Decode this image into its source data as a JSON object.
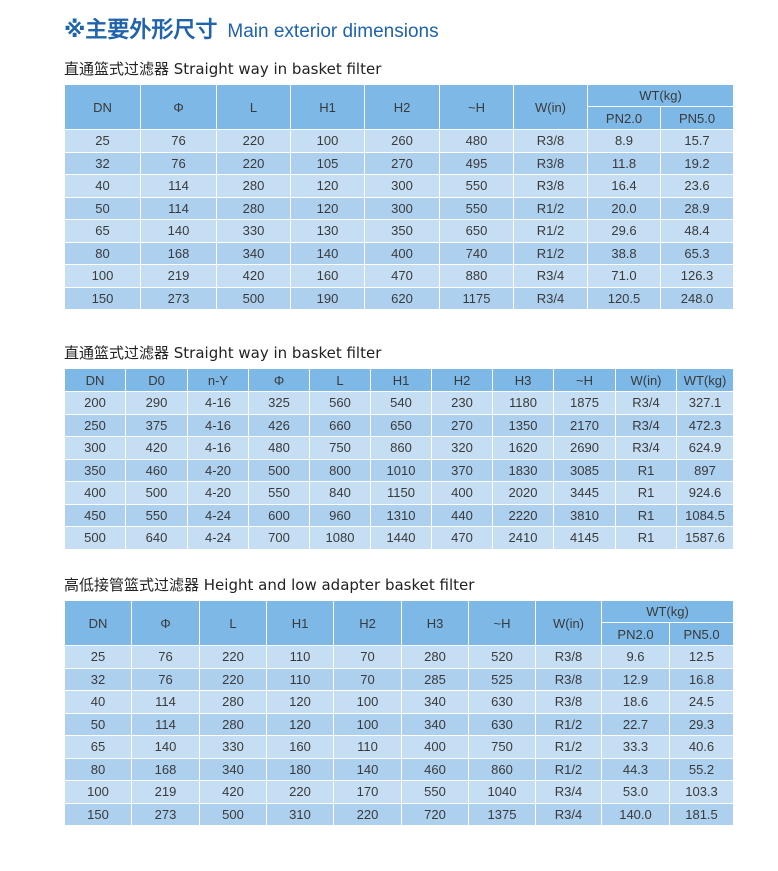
{
  "title": {
    "cn": "※主要外形尺寸",
    "en": "Main exterior dimensions"
  },
  "colors": {
    "header": "#7db8e6",
    "row_light": "#c6def3",
    "row_dark": "#aed0ef",
    "title": "#1f63ad"
  },
  "tables": [
    {
      "caption": "直通篮式过滤器 Straight way in basket filter",
      "headers": [
        "DN",
        "Φ",
        "L",
        "H1",
        "H2",
        "~H",
        "W(in)"
      ],
      "group_header": "WT(kg)",
      "sub_headers": [
        "PN2.0",
        "PN5.0"
      ],
      "rows": [
        [
          "25",
          "76",
          "220",
          "100",
          "260",
          "480",
          "R3/8",
          "8.9",
          "15.7"
        ],
        [
          "32",
          "76",
          "220",
          "105",
          "270",
          "495",
          "R3/8",
          "11.8",
          "19.2"
        ],
        [
          "40",
          "114",
          "280",
          "120",
          "300",
          "550",
          "R3/8",
          "16.4",
          "23.6"
        ],
        [
          "50",
          "114",
          "280",
          "120",
          "300",
          "550",
          "R1/2",
          "20.0",
          "28.9"
        ],
        [
          "65",
          "140",
          "330",
          "130",
          "350",
          "650",
          "R1/2",
          "29.6",
          "48.4"
        ],
        [
          "80",
          "168",
          "340",
          "140",
          "400",
          "740",
          "R1/2",
          "38.8",
          "65.3"
        ],
        [
          "100",
          "219",
          "420",
          "160",
          "470",
          "880",
          "R3/4",
          "71.0",
          "126.3"
        ],
        [
          "150",
          "273",
          "500",
          "190",
          "620",
          "1175",
          "R3/4",
          "120.5",
          "248.0"
        ]
      ]
    },
    {
      "caption": "直通篮式过滤器 Straight way in basket filter",
      "headers": [
        "DN",
        "D0",
        "n-Y",
        "Φ",
        "L",
        "H1",
        "H2",
        "H3",
        "~H",
        "W(in)",
        "WT(kg)"
      ],
      "rows": [
        [
          "200",
          "290",
          "4-16",
          "325",
          "560",
          "540",
          "230",
          "1180",
          "1875",
          "R3/4",
          "327.1"
        ],
        [
          "250",
          "375",
          "4-16",
          "426",
          "660",
          "650",
          "270",
          "1350",
          "2170",
          "R3/4",
          "472.3"
        ],
        [
          "300",
          "420",
          "4-16",
          "480",
          "750",
          "860",
          "320",
          "1620",
          "2690",
          "R3/4",
          "624.9"
        ],
        [
          "350",
          "460",
          "4-20",
          "500",
          "800",
          "1010",
          "370",
          "1830",
          "3085",
          "R1",
          "897"
        ],
        [
          "400",
          "500",
          "4-20",
          "550",
          "840",
          "1150",
          "400",
          "2020",
          "3445",
          "R1",
          "924.6"
        ],
        [
          "450",
          "550",
          "4-24",
          "600",
          "960",
          "1310",
          "440",
          "2220",
          "3810",
          "R1",
          "1084.5"
        ],
        [
          "500",
          "640",
          "4-24",
          "700",
          "1080",
          "1440",
          "470",
          "2410",
          "4145",
          "R1",
          "1587.6"
        ]
      ]
    },
    {
      "caption": "高低接管篮式过滤器 Height and low adapter basket filter",
      "headers": [
        "DN",
        "Φ",
        "L",
        "H1",
        "H2",
        "H3",
        "~H",
        "W(in)"
      ],
      "group_header": "WT(kg)",
      "sub_headers": [
        "PN2.0",
        "PN5.0"
      ],
      "rows": [
        [
          "25",
          "76",
          "220",
          "110",
          "70",
          "280",
          "520",
          "R3/8",
          "9.6",
          "12.5"
        ],
        [
          "32",
          "76",
          "220",
          "110",
          "70",
          "285",
          "525",
          "R3/8",
          "12.9",
          "16.8"
        ],
        [
          "40",
          "114",
          "280",
          "120",
          "100",
          "340",
          "630",
          "R3/8",
          "18.6",
          "24.5"
        ],
        [
          "50",
          "114",
          "280",
          "120",
          "100",
          "340",
          "630",
          "R1/2",
          "22.7",
          "29.3"
        ],
        [
          "65",
          "140",
          "330",
          "160",
          "110",
          "400",
          "750",
          "R1/2",
          "33.3",
          "40.6"
        ],
        [
          "80",
          "168",
          "340",
          "180",
          "140",
          "460",
          "860",
          "R1/2",
          "44.3",
          "55.2"
        ],
        [
          "100",
          "219",
          "420",
          "220",
          "170",
          "550",
          "1040",
          "R3/4",
          "53.0",
          "103.3"
        ],
        [
          "150",
          "273",
          "500",
          "310",
          "220",
          "720",
          "1375",
          "R3/4",
          "140.0",
          "181.5"
        ]
      ]
    }
  ]
}
